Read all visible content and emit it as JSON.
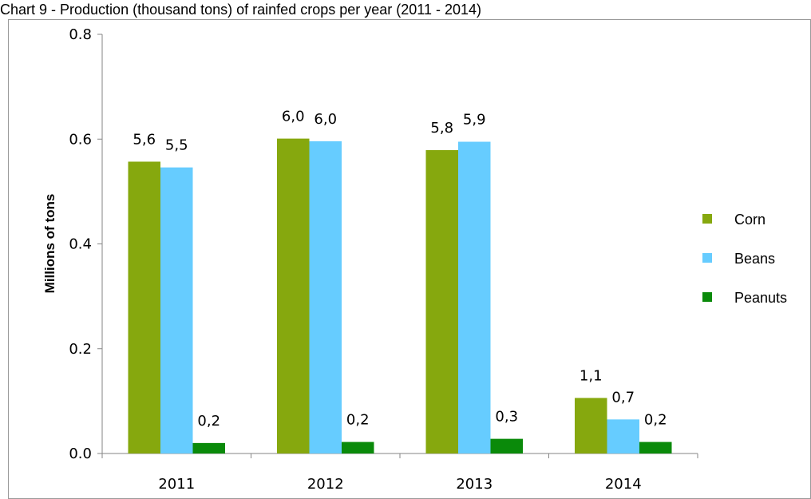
{
  "chart_data": {
    "type": "bar",
    "title": "Chart 9 - Production (thousand tons) of rainfed crops per year (2011 - 2014)",
    "xlabel": "",
    "ylabel": "Millions of tons",
    "categories": [
      "2011",
      "2012",
      "2013",
      "2014"
    ],
    "ylim": [
      0,
      0.8
    ],
    "yticks": [
      "0.0",
      "0.2",
      "0.4",
      "0.6",
      "0.8"
    ],
    "legend_position": "right",
    "grid": false,
    "series": [
      {
        "name": "Corn",
        "color": "#86A80E",
        "values": [
          0.557,
          0.601,
          0.579,
          0.106
        ],
        "labels": [
          "5,6",
          "6,0",
          "5,8",
          "1,1"
        ]
      },
      {
        "name": "Beans",
        "color": "#66CCFF",
        "values": [
          0.546,
          0.596,
          0.595,
          0.065
        ],
        "labels": [
          "5,5",
          "6,0",
          "5,9",
          "0,7"
        ]
      },
      {
        "name": "Peanuts",
        "color": "#0A8A0A",
        "values": [
          0.02,
          0.022,
          0.028,
          0.022
        ],
        "labels": [
          "0,2",
          "0,2",
          "0,3",
          "0,2"
        ]
      }
    ]
  }
}
